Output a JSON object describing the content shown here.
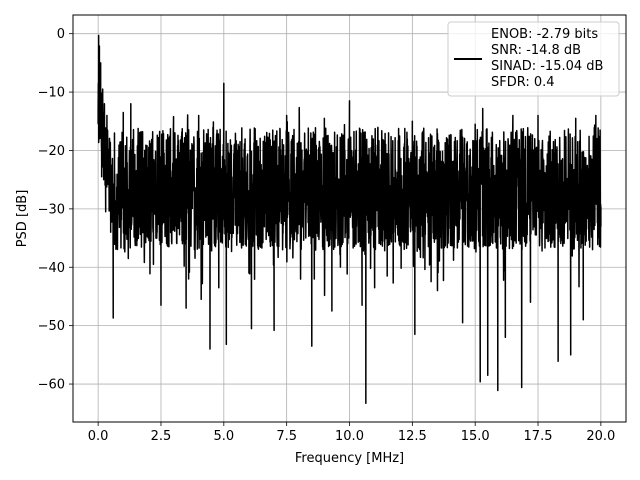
{
  "chart_data": {
    "type": "line",
    "title": "",
    "xlabel": "Frequency [MHz]",
    "ylabel": "PSD [dB]",
    "xlim": [
      -1.0,
      21.0
    ],
    "ylim": [
      -66.5,
      3.2
    ],
    "x_ticks": [
      0.0,
      2.5,
      5.0,
      7.5,
      10.0,
      12.5,
      15.0,
      17.5,
      20.0
    ],
    "x_tick_labels": [
      "0.0",
      "2.5",
      "5.0",
      "7.5",
      "10.0",
      "12.5",
      "15.0",
      "17.5",
      "20.0"
    ],
    "y_ticks": [
      0,
      -10,
      -20,
      -30,
      -40,
      -50,
      -60
    ],
    "y_tick_labels": [
      "0",
      "−10",
      "−20",
      "−30",
      "−40",
      "−50",
      "−60"
    ],
    "grid": true,
    "legend_position": "top-right",
    "series": [
      {
        "name": "ENOB: -2.79 bits\nSNR: -14.8 dB\nSINAD: -15.04 dB\nSFDR: 0.4",
        "color": "#000000",
        "x_range": [
          0.0,
          20.0
        ],
        "noise_floor_db": [
          -37,
          -16
        ],
        "points": [
          [
            0.0,
            -15.5
          ],
          [
            0.02,
            -0.3
          ],
          [
            0.05,
            -2.1
          ],
          [
            0.08,
            -12.0
          ],
          [
            0.1,
            -5.0
          ],
          [
            0.14,
            -24.5
          ],
          [
            0.18,
            -9.5
          ],
          [
            0.22,
            -25.0
          ],
          [
            0.25,
            -12.0
          ],
          [
            0.3,
            -30.5
          ],
          [
            0.35,
            -14.0
          ],
          [
            0.4,
            -24.0
          ],
          [
            0.45,
            -18.0
          ],
          [
            0.5,
            -34.0
          ],
          [
            0.55,
            -26.0
          ],
          [
            0.6,
            -48.7
          ],
          [
            0.65,
            -17.0
          ],
          [
            1.0,
            -13.5
          ],
          [
            1.2,
            -38.5
          ],
          [
            1.3,
            -12.0
          ],
          [
            2.2,
            -39.5
          ],
          [
            2.5,
            -46.5
          ],
          [
            3.0,
            -14.2
          ],
          [
            3.5,
            -47.0
          ],
          [
            3.6,
            -42.0
          ],
          [
            4.0,
            -14.0
          ],
          [
            4.1,
            -45.5
          ],
          [
            4.2,
            -16.5
          ],
          [
            4.45,
            -54.0
          ],
          [
            4.8,
            -43.5
          ],
          [
            5.0,
            -8.5
          ],
          [
            5.1,
            -53.2
          ],
          [
            6.0,
            -41.0
          ],
          [
            6.1,
            -50.5
          ],
          [
            7.0,
            -50.8
          ],
          [
            7.5,
            -14.0
          ],
          [
            8.5,
            -53.5
          ],
          [
            8.6,
            -42.0
          ],
          [
            9.0,
            -14.5
          ],
          [
            9.3,
            -47.5
          ],
          [
            10.0,
            -11.5
          ],
          [
            10.1,
            -25.0
          ],
          [
            10.5,
            -46.5
          ],
          [
            10.65,
            -63.3
          ],
          [
            11.0,
            -43.5
          ],
          [
            11.5,
            -41.5
          ],
          [
            12.5,
            -15.0
          ],
          [
            12.6,
            -51.5
          ],
          [
            13.5,
            -44.0
          ],
          [
            14.5,
            -49.5
          ],
          [
            15.0,
            -15.5
          ],
          [
            15.2,
            -59.6
          ],
          [
            15.5,
            -58.5
          ],
          [
            15.9,
            -61.1
          ],
          [
            16.2,
            -52.0
          ],
          [
            16.5,
            -14.0
          ],
          [
            16.85,
            -60.6
          ],
          [
            17.2,
            -46.0
          ],
          [
            17.5,
            -14.0
          ],
          [
            18.3,
            -56.1
          ],
          [
            18.8,
            -55.0
          ],
          [
            19.0,
            -14.5
          ],
          [
            19.3,
            -49.0
          ],
          [
            19.8,
            -14.0
          ],
          [
            20.0,
            -33.0
          ]
        ]
      }
    ]
  }
}
